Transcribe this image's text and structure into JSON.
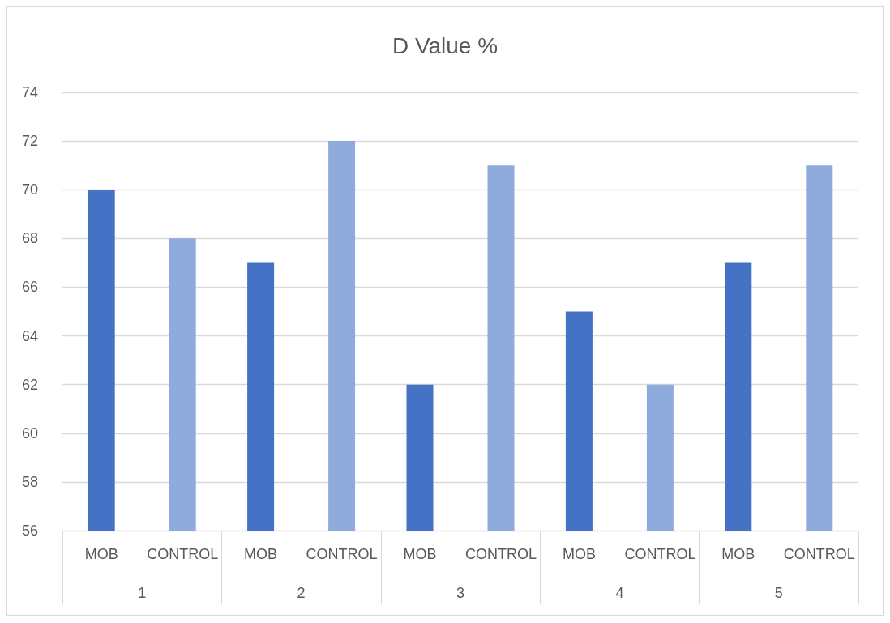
{
  "chart_data": {
    "type": "bar",
    "title": "D Value %",
    "categories": [
      "1",
      "2",
      "3",
      "4",
      "5"
    ],
    "series": [
      {
        "name": "MOB",
        "color": "#4472c4",
        "values": [
          70,
          67,
          62,
          65,
          67
        ]
      },
      {
        "name": "CONTROL",
        "color": "#8faadc",
        "values": [
          68,
          72,
          71,
          62,
          71
        ]
      }
    ],
    "ylim": [
      56,
      74
    ],
    "yticks": [
      56,
      58,
      60,
      62,
      64,
      66,
      68,
      70,
      72,
      74
    ],
    "grid": "y",
    "legend": false
  }
}
